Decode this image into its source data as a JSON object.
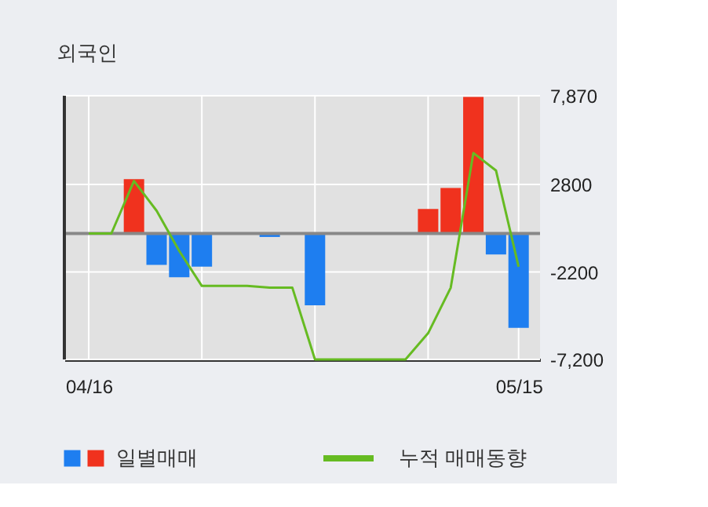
{
  "chart_data": {
    "type": "bar",
    "title": "외국인",
    "categories": [
      "04/16",
      null,
      null,
      null,
      null,
      null,
      null,
      null,
      null,
      null,
      null,
      null,
      null,
      null,
      null,
      null,
      null,
      null,
      null,
      "05/15"
    ],
    "series": [
      {
        "name": "일별매매",
        "values": [
          null,
          null,
          3100,
          -1800,
          -2500,
          -1900,
          null,
          null,
          -200,
          null,
          -4100,
          null,
          null,
          null,
          null,
          1400,
          2600,
          7800,
          -1200,
          -5400
        ],
        "colors": [
          "#f0321e",
          "#f0321e",
          "#f0321e",
          "#1e7ef0",
          "#1e7ef0",
          "#1e7ef0",
          "#1e7ef0",
          "#1e7ef0",
          "#1e7ef0",
          "#1e7ef0",
          "#1e7ef0",
          "#1e7ef0",
          "#1e7ef0",
          "#1e7ef0",
          "#1e7ef0",
          "#f0321e",
          "#f0321e",
          "#f0321e",
          "#1e7ef0",
          "#1e7ef0"
        ]
      },
      {
        "name": "누적 매매동향",
        "type": "line",
        "color": "#66bb22",
        "values": [
          0,
          0,
          3000,
          1300,
          -1000,
          -3000,
          -3000,
          -3000,
          -3100,
          -3100,
          -7200,
          -7200,
          -7200,
          -7200,
          -7200,
          -5700,
          -3100,
          4600,
          3600,
          -1900
        ]
      }
    ],
    "ylim": [
      -7200,
      7870
    ],
    "yticks": [
      {
        "value": 7870,
        "label": "7,870"
      },
      {
        "value": 2800,
        "label": "2800"
      },
      {
        "value": -2200,
        "label": "-2200"
      },
      {
        "value": -7200,
        "label": "-7,200"
      }
    ],
    "ref_lines": [
      {
        "axis": "y",
        "value": 0,
        "color": "#888888"
      }
    ],
    "grid": true,
    "legend": "bottom"
  }
}
